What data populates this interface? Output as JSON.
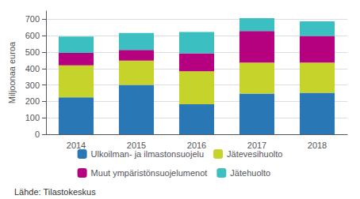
{
  "chart_data": {
    "type": "bar",
    "stacked": true,
    "categories": [
      "2014",
      "2015",
      "2016",
      "2017",
      "2018"
    ],
    "series": [
      {
        "name": "Ulkoilman- ja ilmastonsuojelu",
        "color": "#2977B5",
        "values": [
          225,
          300,
          183,
          248,
          253
        ]
      },
      {
        "name": "Jätevesihuolto",
        "color": "#C5D32A",
        "values": [
          195,
          148,
          200,
          188,
          183
        ]
      },
      {
        "name": "Muut ympäristönsuojelumenot",
        "color": "#B5007F",
        "values": [
          75,
          65,
          110,
          193,
          163
        ]
      },
      {
        "name": "Jätehuolto",
        "color": "#3BBFC0",
        "values": [
          100,
          103,
          130,
          78,
          88
        ]
      }
    ],
    "ylabel": "Miljoonaa euroa",
    "ylim": [
      0,
      750
    ],
    "yticks": [
      0,
      100,
      200,
      300,
      400,
      500,
      600,
      700
    ],
    "grid": true,
    "legend": "bottom",
    "annotation": "Lähde: Tilastokeskus"
  }
}
